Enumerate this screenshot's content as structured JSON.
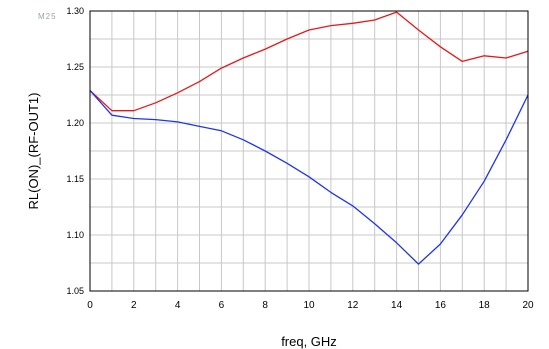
{
  "marker_label": "M25",
  "chart_data": {
    "type": "line",
    "xlabel": "freq, GHz",
    "ylabel": "RL(ON)_(RF-OUT1)",
    "xlim": [
      0,
      20
    ],
    "ylim": [
      1.05,
      1.3
    ],
    "x_ticks": [
      "0",
      "2",
      "4",
      "6",
      "8",
      "10",
      "12",
      "14",
      "16",
      "18",
      "20"
    ],
    "y_ticks": [
      "1.05",
      "1.10",
      "1.15",
      "1.20",
      "1.25",
      "1.30"
    ],
    "grid": true,
    "series": [
      {
        "color": "#e31a1c",
        "x": [
          0,
          1,
          2,
          3,
          4,
          5,
          6,
          7,
          8,
          9,
          10,
          11,
          12,
          13,
          14,
          15,
          16,
          17,
          18,
          19,
          20
        ],
        "y": [
          1.229,
          1.211,
          1.211,
          1.218,
          1.227,
          1.237,
          1.249,
          1.258,
          1.266,
          1.275,
          1.283,
          1.287,
          1.289,
          1.292,
          1.299,
          1.283,
          1.268,
          1.255,
          1.26,
          1.258,
          1.264
        ]
      },
      {
        "color": "#1f35e8",
        "x": [
          0,
          1,
          2,
          3,
          4,
          5,
          6,
          7,
          8,
          9,
          10,
          11,
          12,
          13,
          14,
          15,
          16,
          17,
          18,
          19,
          20
        ],
        "y": [
          1.229,
          1.207,
          1.204,
          1.203,
          1.201,
          1.197,
          1.193,
          1.185,
          1.175,
          1.164,
          1.152,
          1.138,
          1.126,
          1.11,
          1.093,
          1.074,
          1.092,
          1.118,
          1.148,
          1.185,
          1.225
        ]
      }
    ]
  }
}
